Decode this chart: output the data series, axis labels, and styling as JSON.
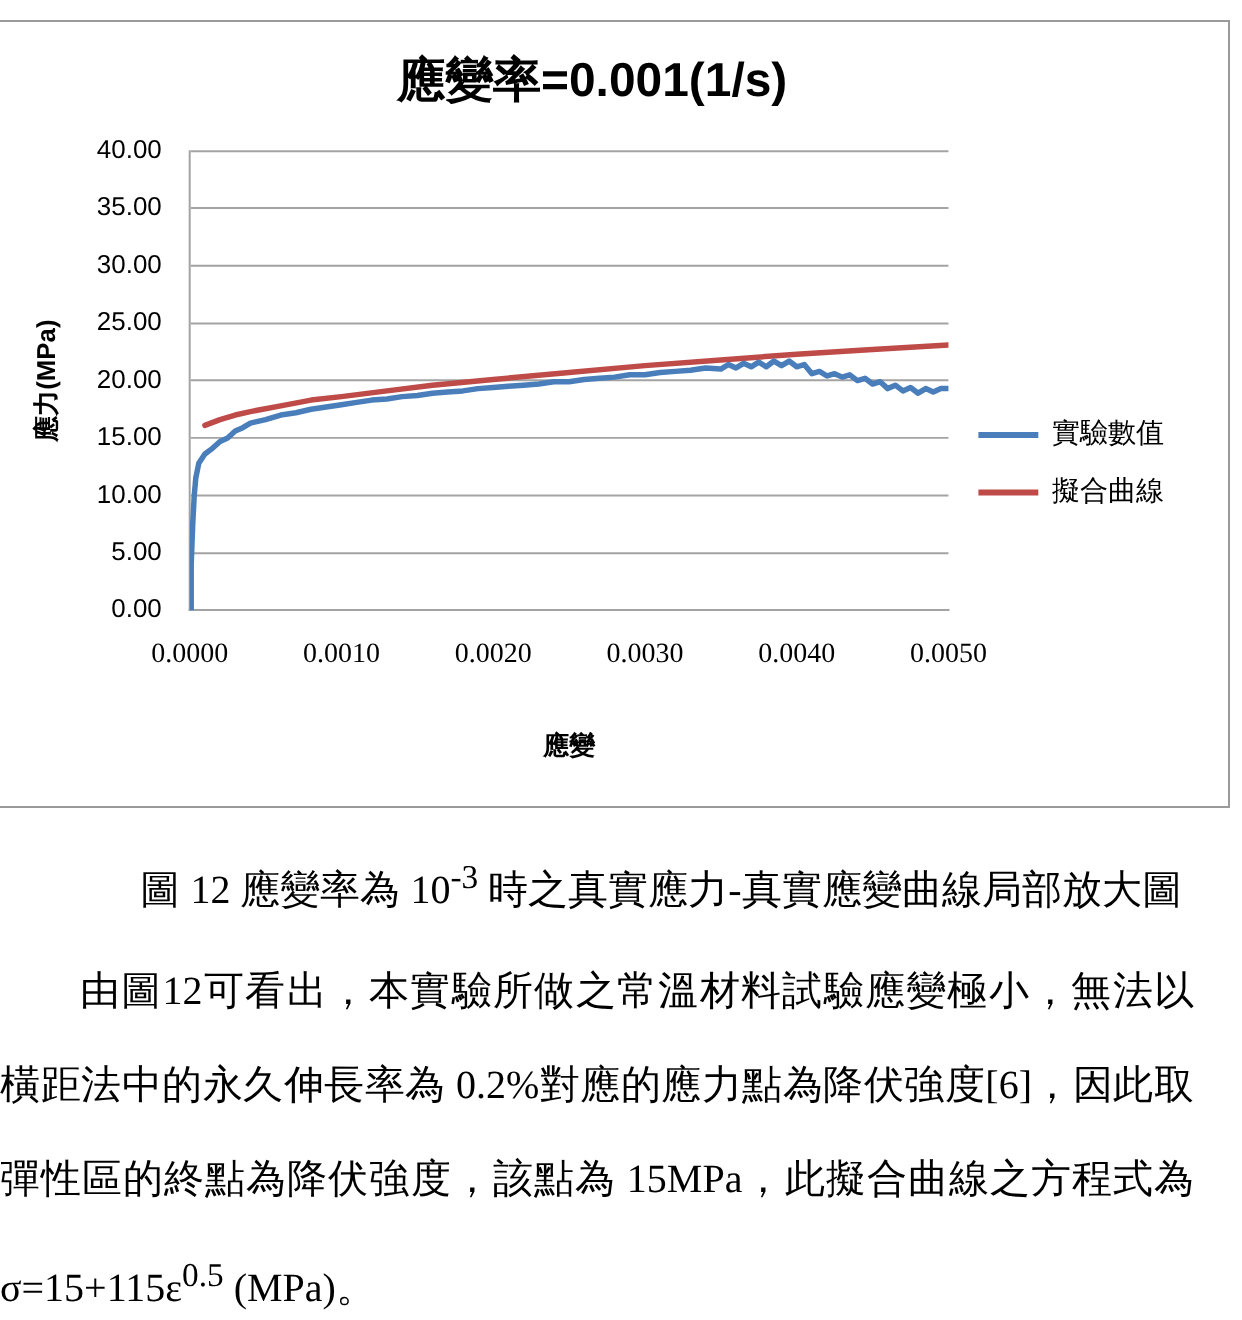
{
  "chart_data": {
    "type": "line",
    "title": "應變率=0.001(1/s)",
    "xlabel": "應變",
    "ylabel": "應力(MPa)",
    "xlim": [
      0,
      0.005
    ],
    "xticks": [
      {
        "value": 0,
        "label": "0.0000"
      },
      {
        "value": 0.001,
        "label": "0.0010"
      },
      {
        "value": 0.002,
        "label": "0.0020"
      },
      {
        "value": 0.003,
        "label": "0.0030"
      },
      {
        "value": 0.004,
        "label": "0.0040"
      },
      {
        "value": 0.005,
        "label": "0.0050"
      }
    ],
    "ylim": [
      0,
      40
    ],
    "yticks": [
      {
        "value": 0,
        "label": "0.00"
      },
      {
        "value": 5,
        "label": "5.00"
      },
      {
        "value": 10,
        "label": "10.00"
      },
      {
        "value": 15,
        "label": "15.00"
      },
      {
        "value": 20,
        "label": "20.00"
      },
      {
        "value": 25,
        "label": "25.00"
      },
      {
        "value": 30,
        "label": "30.00"
      },
      {
        "value": 35,
        "label": "35.00"
      },
      {
        "value": 40,
        "label": "40.00"
      }
    ],
    "grid": "y",
    "legend": "right",
    "marker": "none",
    "line_style": "solid",
    "series": [
      {
        "name": "實驗數值",
        "color": "#4a7ebb",
        "x": [
          0,
          1e-05,
          2e-05,
          3e-05,
          4e-05,
          6e-05,
          0.0001,
          0.00015,
          0.0002,
          0.00025,
          0.0003,
          0.00035,
          0.0004,
          0.0005,
          0.0006,
          0.0007,
          0.0008,
          0.0009,
          0.001,
          0.0011,
          0.0012,
          0.0013,
          0.0014,
          0.0015,
          0.0016,
          0.0017,
          0.0018,
          0.0019,
          0.002,
          0.0021,
          0.0022,
          0.0023,
          0.0024,
          0.0025,
          0.0026,
          0.0027,
          0.0028,
          0.0029,
          0.003,
          0.0031,
          0.0032,
          0.0033,
          0.0034,
          0.0035,
          0.00355,
          0.0036,
          0.00365,
          0.0037,
          0.00375,
          0.0038,
          0.00385,
          0.0039,
          0.00395,
          0.004,
          0.00405,
          0.0041,
          0.00415,
          0.0042,
          0.00425,
          0.0043,
          0.00435,
          0.0044,
          0.00445,
          0.0045,
          0.00455,
          0.0046,
          0.00465,
          0.0047,
          0.00475,
          0.0048,
          0.00485,
          0.0049,
          0.00495,
          0.005
        ],
        "values": [
          0,
          4,
          7.5,
          10,
          11.5,
          12.8,
          13.6,
          14.1,
          14.7,
          15,
          15.6,
          15.9,
          16.3,
          16.6,
          17,
          17.2,
          17.5,
          17.7,
          17.9,
          18.1,
          18.3,
          18.4,
          18.6,
          18.7,
          18.9,
          19,
          19.1,
          19.3,
          19.4,
          19.5,
          19.6,
          19.7,
          19.9,
          19.9,
          20.1,
          20.2,
          20.3,
          20.5,
          20.5,
          20.7,
          20.8,
          20.9,
          21.1,
          21,
          21.4,
          21.1,
          21.5,
          21.2,
          21.6,
          21.2,
          21.7,
          21.3,
          21.7,
          21.2,
          21.4,
          20.6,
          20.8,
          20.4,
          20.6,
          20.3,
          20.5,
          20,
          20.2,
          19.7,
          19.9,
          19.3,
          19.6,
          19.1,
          19.4,
          18.9,
          19.3,
          19,
          19.3,
          19.3
        ]
      },
      {
        "name": "擬合曲線",
        "color": "#be4b48",
        "x": [
          0.0001,
          0.0002,
          0.0003,
          0.0004,
          0.0006,
          0.0008,
          0.001,
          0.0013,
          0.0016,
          0.002,
          0.0025,
          0.003,
          0.0035,
          0.004,
          0.0045,
          0.005
        ],
        "values": [
          16.1,
          16.6,
          17,
          17.3,
          17.8,
          18.3,
          18.6,
          19.1,
          19.6,
          20.1,
          20.7,
          21.3,
          21.8,
          22.3,
          22.7,
          23.1
        ]
      }
    ],
    "annotations": [
      "圖 12 應變率為 10$^{-3}$ 時之真實應力-真實應變曲線局部放大圖",
      "由圖12可看出，本實驗所做之常溫材料試驗應變極小，無法以橫距法中的永久伸長率為 0.2%對應的應力點為降伏強度[6]，因此取彈性區的終點為降伏強度，該點為 15MPa，此擬合曲線之方程式為 σ=15+115ε$^{0.5}$ (MPa)。"
    ]
  }
}
